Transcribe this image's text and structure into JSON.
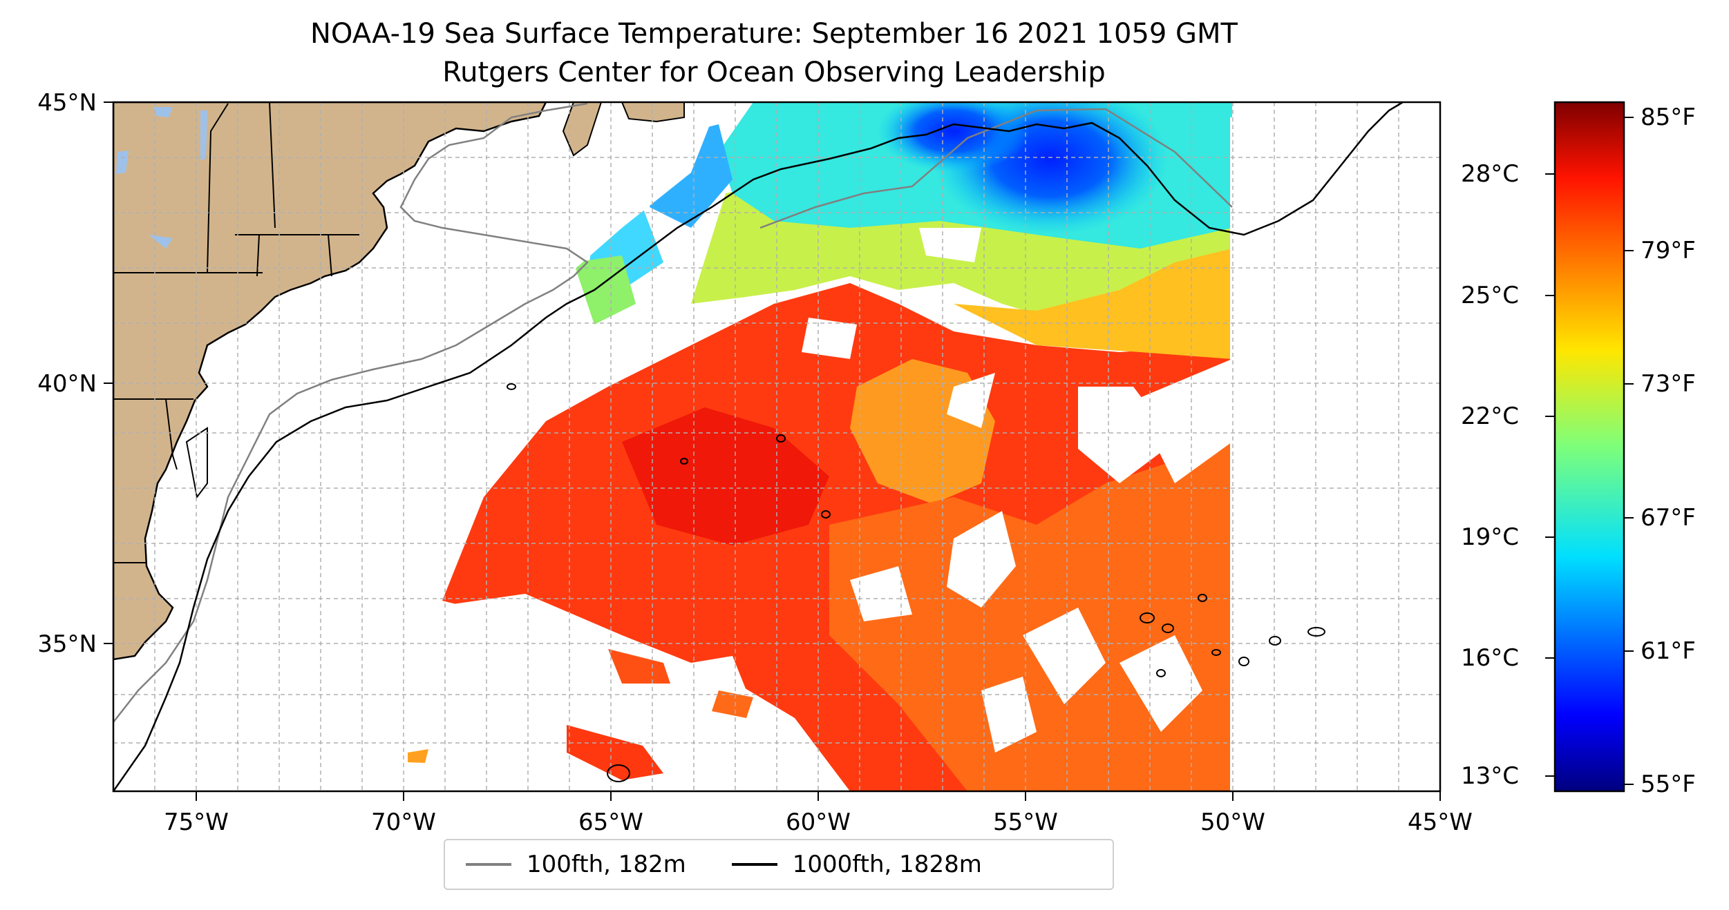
{
  "title": {
    "line1": "NOAA-19 Sea Surface Temperature: September 16 2021 1059 GMT",
    "line2": "Rutgers Center for Ocean Observing Leadership"
  },
  "map": {
    "lon_range": [
      -77,
      -45
    ],
    "lat_range": [
      32.5,
      45
    ],
    "x_tick_labels": [
      {
        "lon": -75,
        "label": "75°W"
      },
      {
        "lon": -70,
        "label": "70°W"
      },
      {
        "lon": -65,
        "label": "65°W"
      },
      {
        "lon": -60,
        "label": "60°W"
      },
      {
        "lon": -55,
        "label": "55°W"
      },
      {
        "lon": -50,
        "label": "50°W"
      },
      {
        "lon": -45,
        "label": "45°W"
      }
    ],
    "y_tick_labels": [
      {
        "lat": 45,
        "label": "45°N"
      },
      {
        "lat": 40,
        "label": "40°N"
      },
      {
        "lat": 35,
        "label": "35°N"
      }
    ],
    "grid": true,
    "land_color": "#d2b48c",
    "lake_color": "#9ec1ea",
    "data_east_edge_lon": -50
  },
  "legend": {
    "items": [
      {
        "label": "100fth, 182m",
        "color": "#808080"
      },
      {
        "label": "1000fth, 1828m",
        "color": "#000000"
      }
    ],
    "placement": "bottom-center"
  },
  "colorbar": {
    "colormap": "jet",
    "range_F": [
      55,
      86
    ],
    "celsius_ticks": [
      "28°C",
      "25°C",
      "22°C",
      "19°C",
      "16°C",
      "13°C"
    ],
    "fahrenheit_ticks": [
      "85°F",
      "79°F",
      "73°F",
      "67°F",
      "61°F",
      "55°F"
    ]
  }
}
